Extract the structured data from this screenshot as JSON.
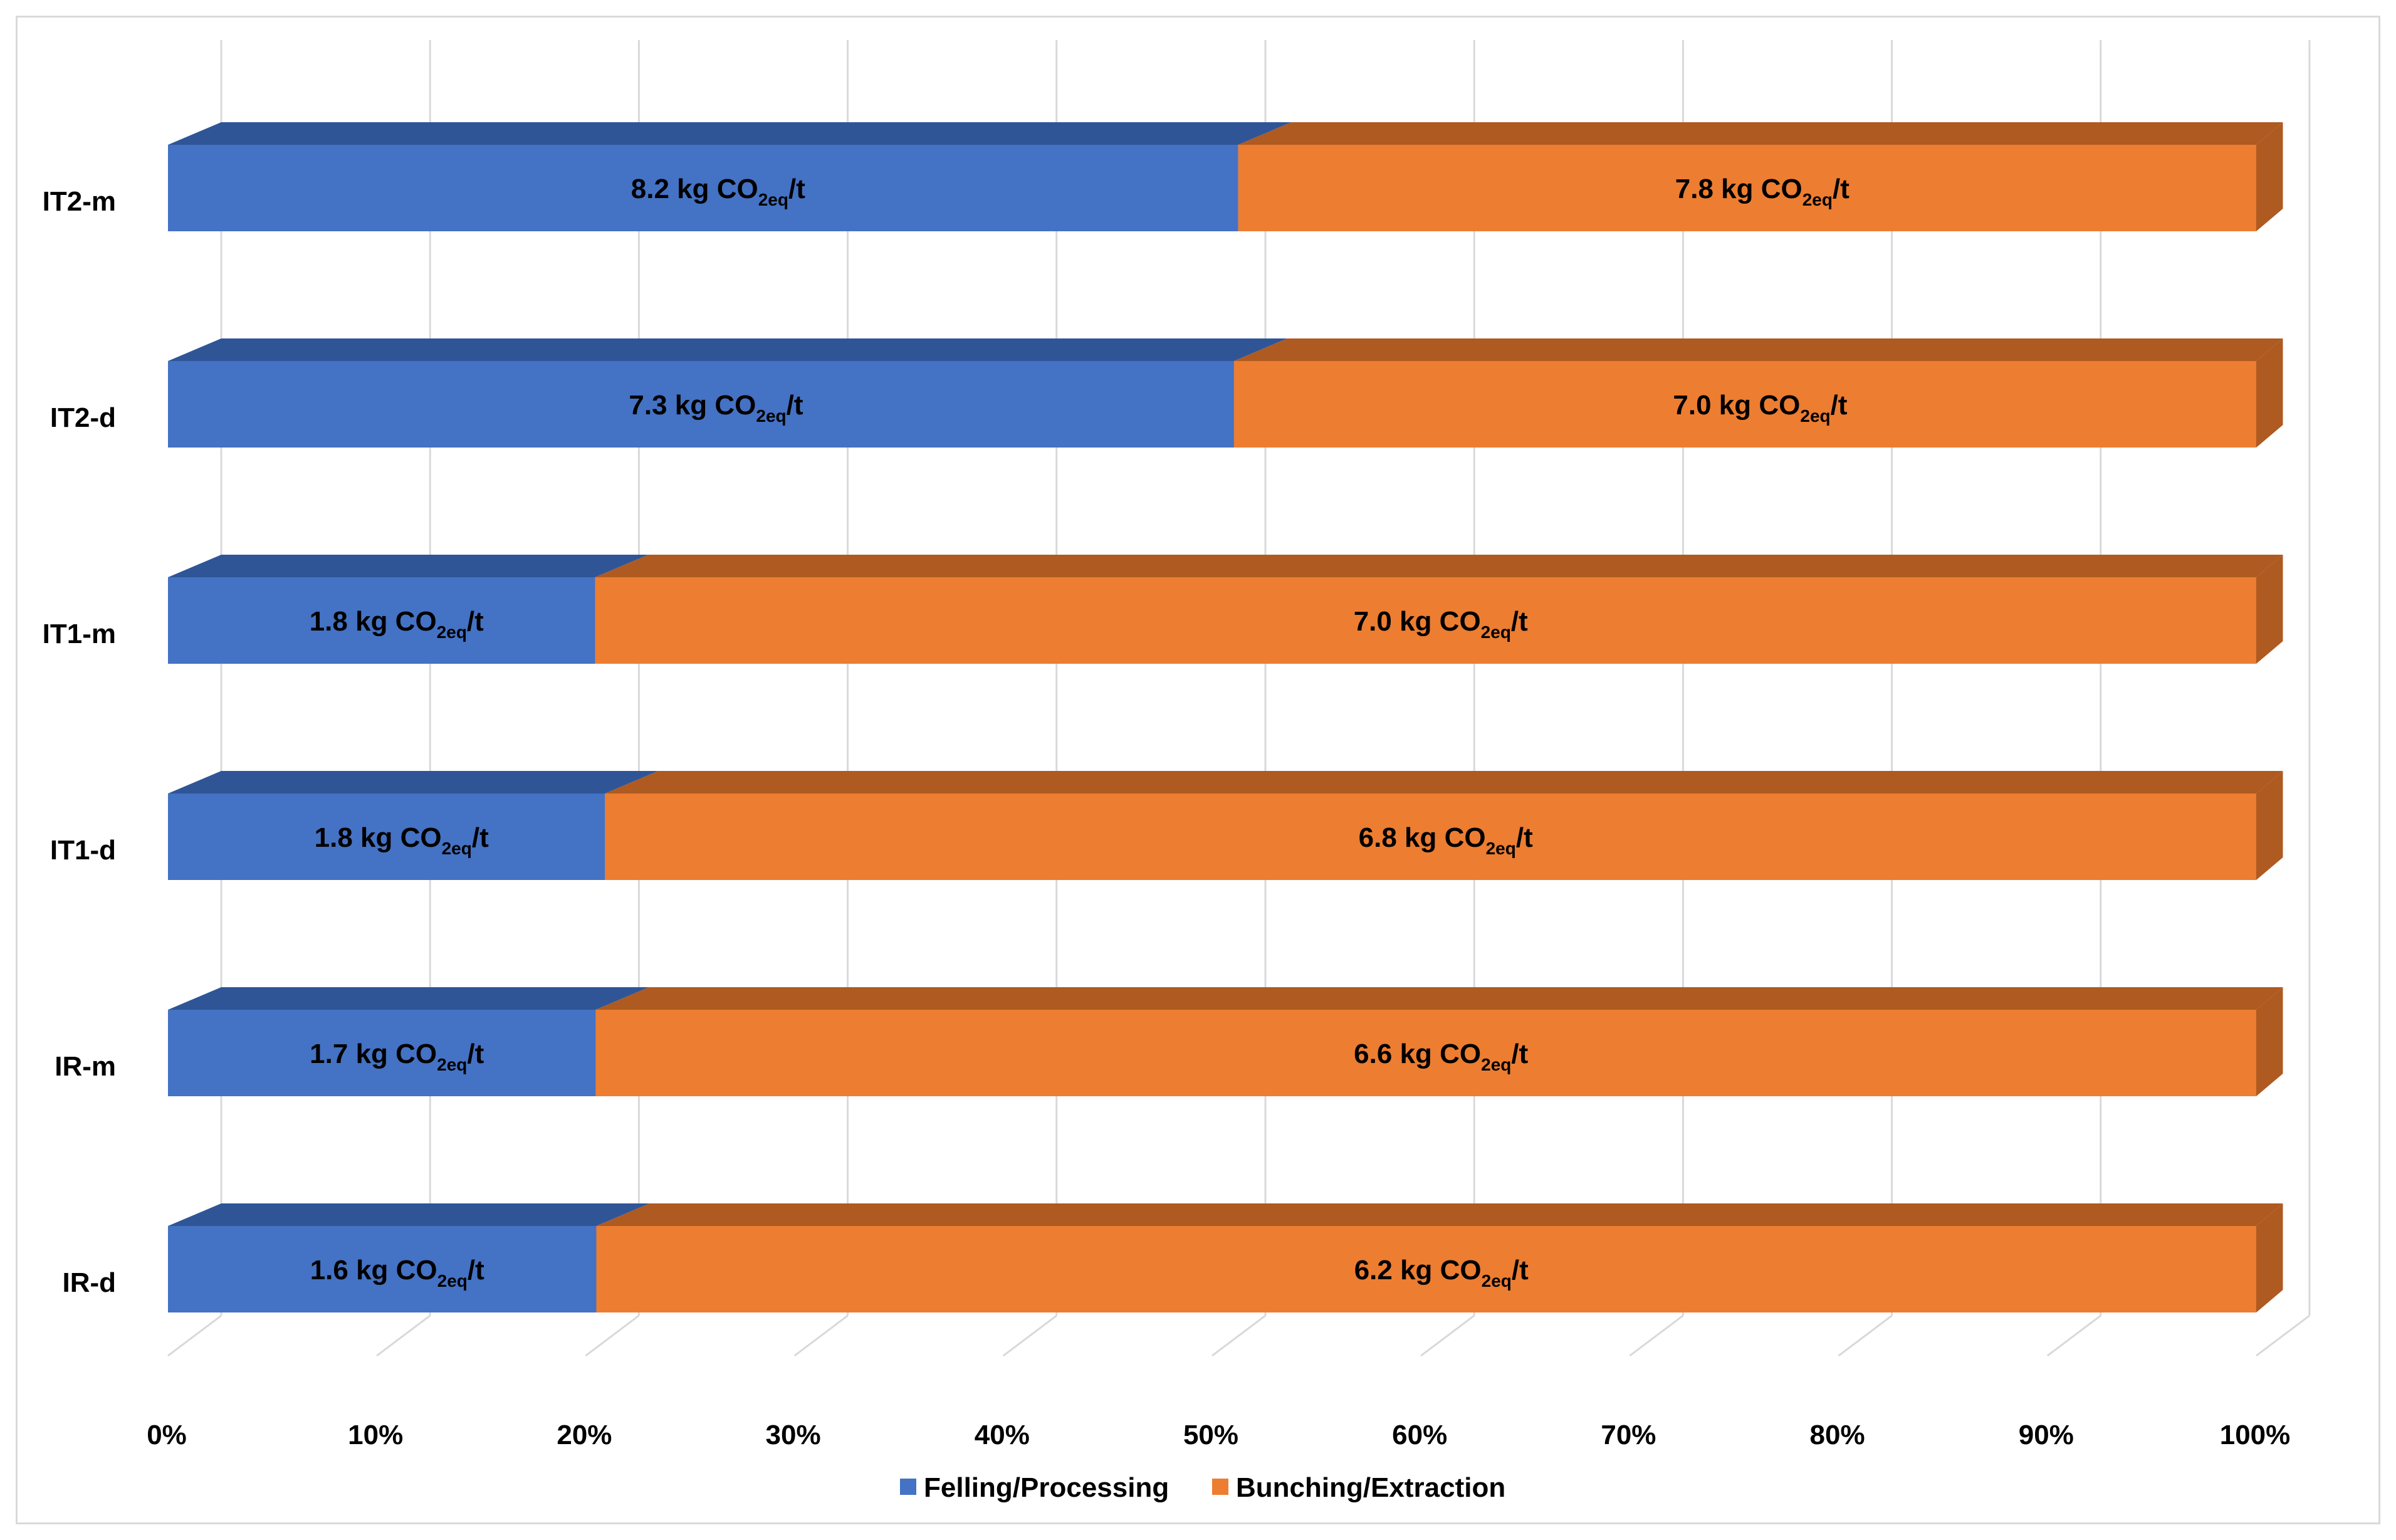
{
  "chart_data": {
    "type": "bar",
    "orientation": "horizontal",
    "stacked": "percent",
    "style": "3d",
    "categories": [
      "IT2-m",
      "IT2-d",
      "IT1-m",
      "IT1-d",
      "IR-m",
      "IR-d"
    ],
    "series": [
      {
        "name": "Felling/Processing",
        "color": "#4472c4",
        "side_color": "#2f5597",
        "values": [
          8.2,
          7.3,
          1.8,
          1.8,
          1.7,
          1.6
        ],
        "labels": [
          "8.2 kg CO",
          "7.3 kg CO",
          "1.8 kg CO",
          "1.8 kg CO",
          "1.7 kg CO",
          "1.6 kg CO"
        ]
      },
      {
        "name": "Bunching/Extraction",
        "color": "#ed7d31",
        "side_color": "#ae5a21",
        "values": [
          7.8,
          7.0,
          7.0,
          6.8,
          6.6,
          6.2
        ],
        "labels": [
          "7.8 kg CO",
          "7.0 kg CO",
          "7.0 kg CO",
          "6.8 kg CO",
          "6.6 kg CO",
          "6.2 kg CO"
        ]
      }
    ],
    "label_subscript": "2eq",
    "label_unit_suffix": "/t",
    "xlim": [
      0,
      100
    ],
    "xticks": [
      "0%",
      "10%",
      "20%",
      "30%",
      "40%",
      "50%",
      "60%",
      "70%",
      "80%",
      "90%",
      "100%"
    ],
    "grid": true,
    "legend_position": "bottom"
  }
}
